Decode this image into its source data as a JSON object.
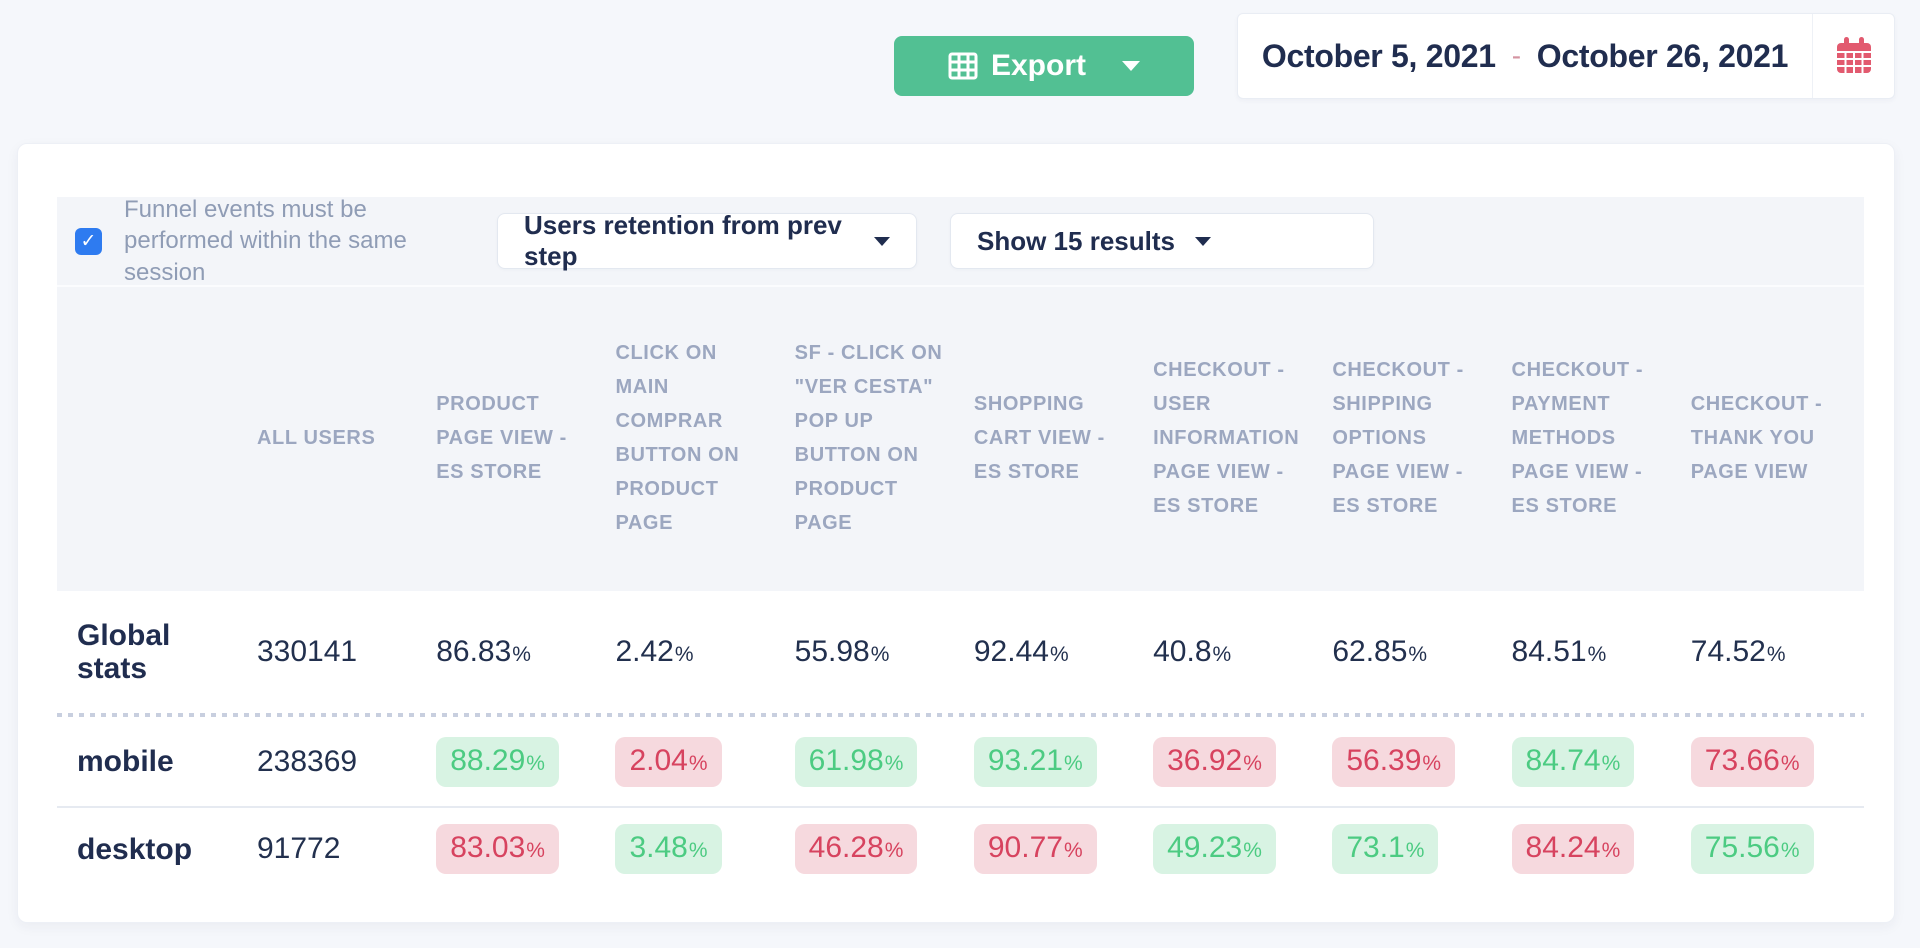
{
  "topbar": {
    "export_label": "Export",
    "date_range": {
      "start": "October 5, 2021",
      "separator": "-",
      "end": "October 26, 2021"
    }
  },
  "controls": {
    "session_checkbox": {
      "checked": true,
      "label": "Funnel events must be performed within the same session"
    },
    "retention_select": {
      "value": "Users retention from prev step"
    },
    "results_select": {
      "value": "Show 15 results"
    }
  },
  "table": {
    "columns": [
      "ALL USERS",
      "PRODUCT PAGE VIEW - ES STORE",
      "CLICK ON MAIN COMPRAR BUTTON ON PRODUCT PAGE",
      "SF - CLICK ON \"VER CESTA\" POP UP BUTTON ON PRODUCT PAGE",
      "SHOPPING CART VIEW - ES STORE",
      "CHECKOUT - USER INFORMATION PAGE VIEW - ES STORE",
      "CHECKOUT - SHIPPING OPTIONS PAGE VIEW - ES STORE",
      "CHECKOUT - PAYMENT METHODS PAGE VIEW - ES STORE",
      "CHECKOUT - THANK YOU PAGE VIEW"
    ],
    "rows": [
      {
        "id": "global-stats",
        "label": "Global stats",
        "cells": [
          {
            "text": "330141"
          },
          {
            "text": "86.83",
            "pct": true
          },
          {
            "text": "2.42",
            "pct": true
          },
          {
            "text": "55.98",
            "pct": true
          },
          {
            "text": "92.44",
            "pct": true
          },
          {
            "text": "40.8",
            "pct": true
          },
          {
            "text": "62.85",
            "pct": true
          },
          {
            "text": "84.51",
            "pct": true
          },
          {
            "text": "74.52",
            "pct": true
          }
        ]
      },
      {
        "id": "mobile",
        "label": "mobile",
        "cells": [
          {
            "text": "238369"
          },
          {
            "text": "88.29",
            "pct": true,
            "trend": "up"
          },
          {
            "text": "2.04",
            "pct": true,
            "trend": "down"
          },
          {
            "text": "61.98",
            "pct": true,
            "trend": "up"
          },
          {
            "text": "93.21",
            "pct": true,
            "trend": "up"
          },
          {
            "text": "36.92",
            "pct": true,
            "trend": "down"
          },
          {
            "text": "56.39",
            "pct": true,
            "trend": "down"
          },
          {
            "text": "84.74",
            "pct": true,
            "trend": "up"
          },
          {
            "text": "73.66",
            "pct": true,
            "trend": "down"
          }
        ]
      },
      {
        "id": "desktop",
        "label": "desktop",
        "cells": [
          {
            "text": "91772"
          },
          {
            "text": "83.03",
            "pct": true,
            "trend": "down"
          },
          {
            "text": "3.48",
            "pct": true,
            "trend": "up"
          },
          {
            "text": "46.28",
            "pct": true,
            "trend": "down"
          },
          {
            "text": "90.77",
            "pct": true,
            "trend": "down"
          },
          {
            "text": "49.23",
            "pct": true,
            "trend": "up"
          },
          {
            "text": "73.1",
            "pct": true,
            "trend": "up"
          },
          {
            "text": "84.24",
            "pct": true,
            "trend": "down"
          },
          {
            "text": "75.56",
            "pct": true,
            "trend": "up"
          }
        ]
      }
    ]
  },
  "colors": {
    "export_green": "#52c093",
    "calendar_pink": "#e25a6f",
    "checkbox_blue": "#2e7bf0",
    "badge_up_bg": "#d8f3e3",
    "badge_up_text": "#4ccb82",
    "badge_down_bg": "#f6d9de",
    "badge_down_text": "#d7435f"
  }
}
